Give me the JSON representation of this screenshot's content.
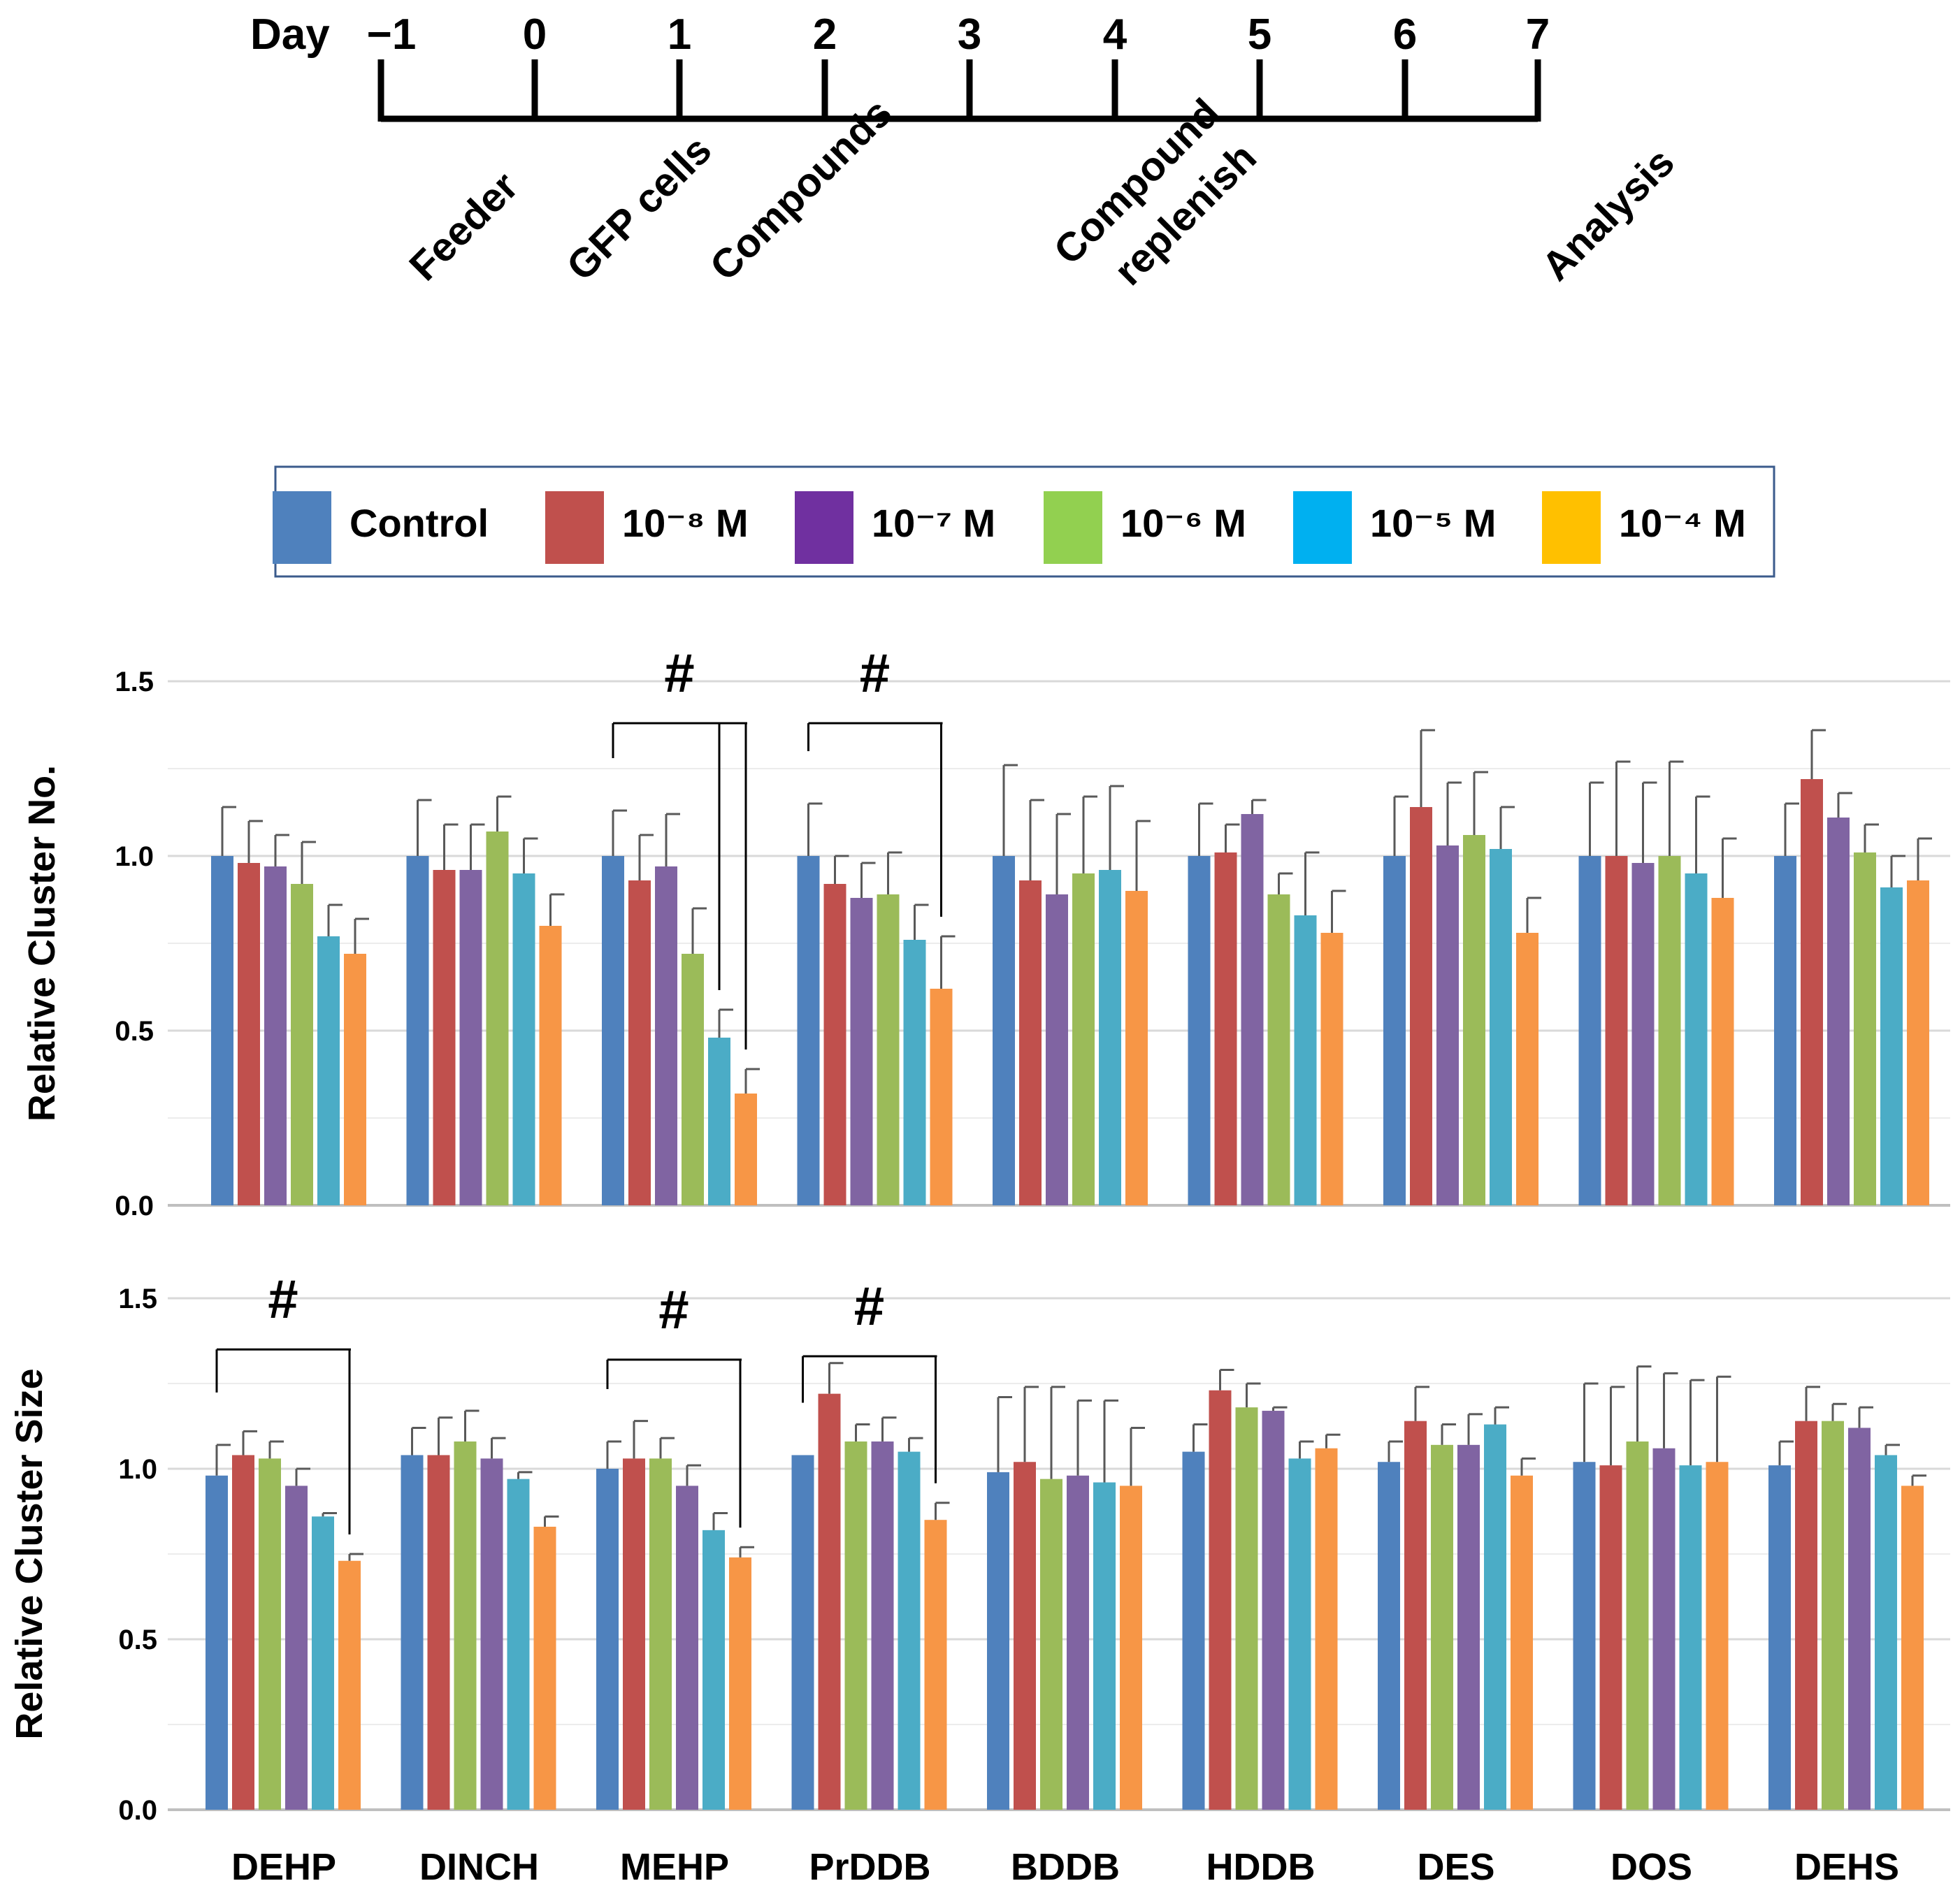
{
  "timeline": {
    "day_label": "Day",
    "days": [
      "−1",
      "0",
      "1",
      "2",
      "3",
      "4",
      "5",
      "6",
      "7"
    ],
    "events": [
      {
        "day_index": 0,
        "lines": [
          "Feeder"
        ]
      },
      {
        "day_index": 1,
        "lines": [
          "GFP cells"
        ]
      },
      {
        "day_index": 2,
        "lines": [
          "Compounds"
        ]
      },
      {
        "day_index": 5,
        "lines": [
          "Compound",
          "replenish"
        ]
      },
      {
        "day_index": 8,
        "lines": [
          "Analysis"
        ]
      }
    ]
  },
  "legend": [
    {
      "label": "Control",
      "color": "#4F81BD"
    },
    {
      "label": "10⁻⁸ M",
      "color": "#C0504D"
    },
    {
      "label": "10⁻⁷ M",
      "color": "#7030A0"
    },
    {
      "label": "10⁻⁶ M",
      "color": "#92D050"
    },
    {
      "label": "10⁻⁵ M",
      "color": "#00B0F0"
    },
    {
      "label": "10⁻⁴ M",
      "color": "#FFC000"
    }
  ],
  "chart_data": [
    {
      "type": "bar",
      "id": "cluster-no",
      "ylabel": "Relative Cluster No.",
      "ylim": [
        0,
        1.5
      ],
      "yticks": [
        "0.0",
        "0.5",
        "1.0",
        "1.5"
      ],
      "categories": [
        "DEHP",
        "DINCH",
        "MEHP",
        "PrDDB",
        "BDDB",
        "HDDB",
        "DES",
        "DOS",
        "DEHS"
      ],
      "series_colors": [
        "#4F81BD",
        "#C0504D",
        "#8064A2",
        "#9BBB59",
        "#4BACC6",
        "#F79646"
      ],
      "series": [
        {
          "name": "Control",
          "values": [
            1.0,
            1.0,
            1.0,
            1.0,
            1.0,
            1.0,
            1.0,
            1.0,
            1.0
          ],
          "errors": [
            0.14,
            0.16,
            0.13,
            0.15,
            0.26,
            0.15,
            0.17,
            0.21,
            0.15
          ]
        },
        {
          "name": "10⁻⁸ M",
          "values": [
            0.98,
            0.96,
            0.93,
            0.92,
            0.93,
            1.01,
            1.14,
            1.0,
            1.22
          ],
          "errors": [
            0.12,
            0.13,
            0.13,
            0.08,
            0.23,
            0.08,
            0.22,
            0.27,
            0.14
          ]
        },
        {
          "name": "10⁻⁷ M",
          "values": [
            0.97,
            0.96,
            0.97,
            0.88,
            0.89,
            1.12,
            1.03,
            0.98,
            1.11
          ],
          "errors": [
            0.09,
            0.13,
            0.15,
            0.1,
            0.23,
            0.04,
            0.18,
            0.23,
            0.07
          ]
        },
        {
          "name": "10⁻⁶ M",
          "values": [
            0.92,
            1.07,
            0.72,
            0.89,
            0.95,
            0.89,
            1.06,
            1.0,
            1.01
          ],
          "errors": [
            0.12,
            0.1,
            0.13,
            0.12,
            0.22,
            0.06,
            0.18,
            0.27,
            0.08
          ]
        },
        {
          "name": "10⁻⁵ M",
          "values": [
            0.77,
            0.95,
            0.48,
            0.76,
            0.96,
            0.83,
            1.02,
            0.95,
            0.91
          ],
          "errors": [
            0.09,
            0.1,
            0.08,
            0.1,
            0.24,
            0.18,
            0.12,
            0.22,
            0.09
          ]
        },
        {
          "name": "10⁻⁴ M",
          "values": [
            0.72,
            0.8,
            0.32,
            0.62,
            0.9,
            0.78,
            0.78,
            0.88,
            0.93
          ],
          "errors": [
            0.1,
            0.09,
            0.07,
            0.15,
            0.2,
            0.12,
            0.1,
            0.17,
            0.12
          ]
        }
      ],
      "significance": [
        {
          "category": "MEHP",
          "mark": "#",
          "from_series": 0,
          "to_series": [
            4,
            5
          ],
          "level": 1.38
        },
        {
          "category": "PrDDB",
          "mark": "#",
          "from_series": 0,
          "to_series": [
            5
          ],
          "level": 1.38
        }
      ]
    },
    {
      "type": "bar",
      "id": "cluster-size",
      "ylabel": "Relative Cluster Size",
      "ylim": [
        0,
        1.5
      ],
      "yticks": [
        "0.0",
        "0.5",
        "1.0",
        "1.5"
      ],
      "categories": [
        "DEHP",
        "DINCH",
        "MEHP",
        "PrDDB",
        "BDDB",
        "HDDB",
        "DES",
        "DOS",
        "DEHS"
      ],
      "series_colors": [
        "#4F81BD",
        "#C0504D",
        "#9BBB59",
        "#8064A2",
        "#4BACC6",
        "#F79646"
      ],
      "series": [
        {
          "name": "Control",
          "values": [
            0.98,
            1.04,
            1.0,
            1.04,
            0.99,
            1.05,
            1.02,
            1.02,
            1.01
          ],
          "errors": [
            0.09,
            0.08,
            0.08,
            0.0,
            0.22,
            0.08,
            0.06,
            0.23,
            0.07
          ]
        },
        {
          "name": "10⁻⁸ M",
          "values": [
            1.04,
            1.04,
            1.03,
            1.22,
            1.02,
            1.23,
            1.14,
            1.01,
            1.14
          ],
          "errors": [
            0.07,
            0.11,
            0.11,
            0.09,
            0.22,
            0.06,
            0.1,
            0.23,
            0.1
          ]
        },
        {
          "name": "10⁻⁶ M",
          "values": [
            1.03,
            1.08,
            1.03,
            1.08,
            0.97,
            1.18,
            1.07,
            1.08,
            1.14
          ],
          "errors": [
            0.05,
            0.09,
            0.06,
            0.05,
            0.27,
            0.07,
            0.06,
            0.22,
            0.05
          ]
        },
        {
          "name": "10⁻⁷ M",
          "values": [
            0.95,
            1.03,
            0.95,
            1.08,
            0.98,
            1.17,
            1.07,
            1.06,
            1.12
          ],
          "errors": [
            0.05,
            0.06,
            0.06,
            0.07,
            0.22,
            0.01,
            0.09,
            0.22,
            0.06
          ]
        },
        {
          "name": "10⁻⁵ M",
          "values": [
            0.86,
            0.97,
            0.82,
            1.05,
            0.96,
            1.03,
            1.13,
            1.01,
            1.04
          ],
          "errors": [
            0.01,
            0.02,
            0.05,
            0.04,
            0.24,
            0.05,
            0.05,
            0.25,
            0.03
          ]
        },
        {
          "name": "10⁻⁴ M",
          "values": [
            0.73,
            0.83,
            0.74,
            0.85,
            0.95,
            1.06,
            0.98,
            1.02,
            0.95
          ],
          "errors": [
            0.02,
            0.03,
            0.03,
            0.05,
            0.17,
            0.04,
            0.05,
            0.25,
            0.03
          ]
        }
      ],
      "significance": [
        {
          "category": "DEHP",
          "mark": "#",
          "from_series": 0,
          "to_series": [
            5
          ],
          "level": 1.35
        },
        {
          "category": "MEHP",
          "mark": "#",
          "from_series": 0,
          "to_series": [
            5
          ],
          "level": 1.32
        },
        {
          "category": "PrDDB",
          "mark": "#",
          "from_series": 0,
          "to_series": [
            5
          ],
          "level": 1.33
        }
      ]
    }
  ]
}
